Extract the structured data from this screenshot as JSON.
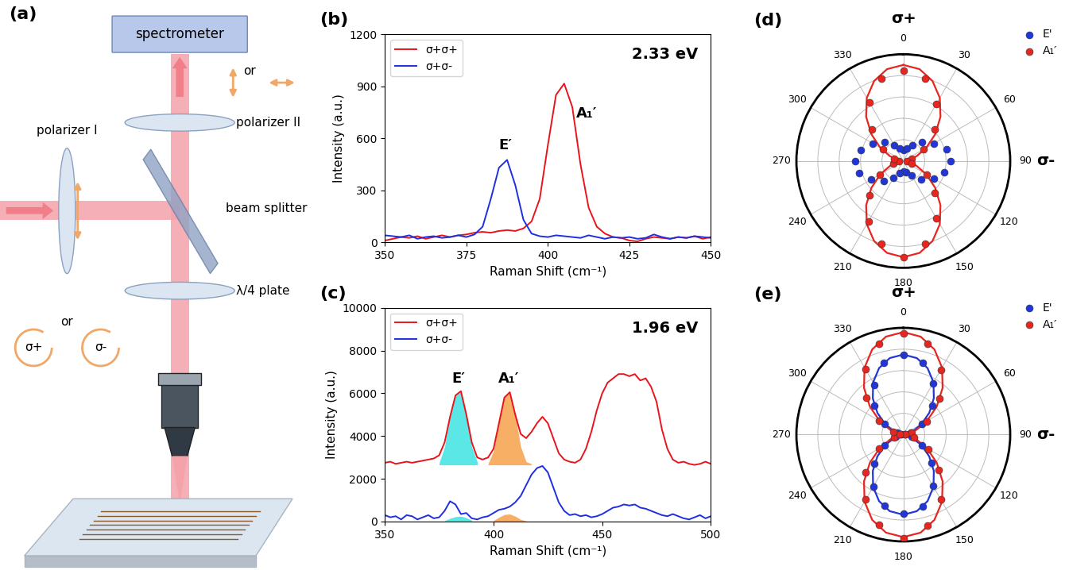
{
  "chart_data": [
    {
      "type": "line",
      "title": "(b)",
      "x_label": "Raman Shift (cm⁻¹)",
      "y_label": "Intensity (a.u.)",
      "x": [
        350,
        352.5,
        355,
        357.5,
        360,
        362.5,
        365,
        367.5,
        370,
        372.5,
        375,
        377.5,
        380,
        382.5,
        385,
        387.5,
        390,
        392.5,
        395,
        397.5,
        400,
        402.5,
        405,
        407.5,
        410,
        412.5,
        415,
        417.5,
        420,
        422.5,
        425,
        427.5,
        430,
        432.5,
        435,
        437.5,
        440,
        442.5,
        445,
        447.5,
        450
      ],
      "series": [
        {
          "name": "σ+σ+",
          "color": "#e8141c",
          "values": [
            10,
            20,
            30,
            25,
            35,
            20,
            30,
            40,
            30,
            40,
            45,
            55,
            60,
            55,
            65,
            70,
            65,
            80,
            120,
            250,
            560,
            850,
            915,
            780,
            450,
            200,
            90,
            50,
            30,
            25,
            10,
            5,
            20,
            30,
            25,
            20,
            30,
            25,
            35,
            20,
            30
          ]
        },
        {
          "name": "σ+σ-",
          "color": "#1f2fe0",
          "values": [
            40,
            35,
            30,
            40,
            20,
            30,
            35,
            25,
            30,
            40,
            30,
            45,
            90,
            250,
            430,
            475,
            330,
            130,
            50,
            35,
            30,
            40,
            35,
            30,
            25,
            40,
            30,
            20,
            30,
            25,
            30,
            20,
            25,
            45,
            30,
            20,
            30,
            25,
            35,
            30,
            25
          ]
        }
      ],
      "annotations": [
        {
          "text": "E′",
          "x": 387,
          "y": 520
        },
        {
          "text": "A₁′",
          "x": 412,
          "y": 700
        },
        {
          "text": "2.33 eV"
        }
      ],
      "xlim": [
        350,
        450
      ],
      "xticks": [
        350,
        375,
        400,
        425,
        450
      ],
      "ylim": [
        0,
        1200
      ],
      "yticks": [
        0,
        300,
        600,
        900,
        1200
      ],
      "legend": "upper left",
      "grid": false
    },
    {
      "type": "line",
      "title": "(c)",
      "x_label": "Raman Shift (cm⁻¹)",
      "y_label": "Intensity (a.u.)",
      "x": [
        350,
        352.5,
        355,
        357.5,
        360,
        362.5,
        365,
        367.5,
        370,
        372.5,
        375,
        377.5,
        380,
        382.5,
        385,
        387.5,
        390,
        392.5,
        395,
        397.5,
        400,
        402.5,
        405,
        407.5,
        410,
        412.5,
        415,
        417.5,
        420,
        422.5,
        425,
        427.5,
        430,
        432.5,
        435,
        437.5,
        440,
        442.5,
        445,
        447.5,
        450,
        452.5,
        455,
        457.5,
        460,
        462.5,
        465,
        467.5,
        470,
        472.5,
        475,
        477.5,
        480,
        482.5,
        485,
        487.5,
        490,
        492.5,
        495,
        497.5,
        500
      ],
      "series": [
        {
          "name": "σ+σ+",
          "color": "#e8141c",
          "values": [
            2750,
            2800,
            2700,
            2750,
            2800,
            2750,
            2800,
            2850,
            2900,
            2950,
            3100,
            3700,
            4900,
            5900,
            6100,
            5000,
            3700,
            3000,
            2900,
            3000,
            3400,
            4600,
            5800,
            6050,
            5000,
            4100,
            3900,
            4200,
            4600,
            4900,
            4600,
            3900,
            3200,
            2900,
            2800,
            2750,
            2900,
            3400,
            4200,
            5200,
            6000,
            6500,
            6700,
            6900,
            6900,
            6800,
            6900,
            6600,
            6700,
            6300,
            5600,
            4300,
            3400,
            2900,
            2750,
            2800,
            2700,
            2650,
            2700,
            2800,
            2700
          ]
        },
        {
          "name": "σ+σ-",
          "color": "#1f2fe0",
          "values": [
            300,
            200,
            250,
            100,
            300,
            250,
            100,
            200,
            300,
            150,
            200,
            500,
            950,
            800,
            350,
            400,
            150,
            100,
            200,
            250,
            400,
            550,
            600,
            700,
            900,
            1200,
            1700,
            2200,
            2500,
            2600,
            2300,
            1600,
            900,
            500,
            300,
            350,
            250,
            300,
            200,
            250,
            350,
            500,
            650,
            700,
            800,
            750,
            800,
            650,
            600,
            500,
            400,
            300,
            250,
            350,
            250,
            150,
            100,
            200,
            300,
            150,
            250
          ]
        },
        {
          "type": "area",
          "color": "#3fe3e3",
          "baseline": 2650,
          "x": [
            375,
            377.5,
            380,
            382.5,
            385,
            387.5,
            390,
            392.5
          ],
          "values": [
            2750,
            3500,
            5000,
            5950,
            6050,
            5000,
            3500,
            2800
          ]
        },
        {
          "type": "area",
          "color": "#f5a14a",
          "baseline": 2650,
          "x": [
            397.5,
            400,
            402.5,
            405,
            407.5,
            410,
            412.5,
            415,
            417.5
          ],
          "values": [
            2700,
            3300,
            4700,
            5900,
            6000,
            5000,
            3500,
            2800,
            2700
          ]
        },
        {
          "type": "area",
          "color": "#3fe3e3",
          "baseline": 0,
          "x": [
            377.5,
            380,
            382.5,
            385,
            387.5,
            390
          ],
          "values": [
            50,
            150,
            230,
            250,
            180,
            60
          ]
        },
        {
          "type": "area",
          "color": "#f5a14a",
          "baseline": 0,
          "x": [
            400,
            402.5,
            405,
            407.5,
            410,
            412.5,
            415
          ],
          "values": [
            50,
            200,
            330,
            350,
            250,
            100,
            30
          ]
        }
      ],
      "annotations": [
        {
          "text": "E′",
          "x": 384,
          "y": 6350
        },
        {
          "text": "A₁′",
          "x": 407,
          "y": 6350
        },
        {
          "text": "1.96 eV"
        }
      ],
      "xlim": [
        350,
        500
      ],
      "xticks": [
        350,
        400,
        450,
        500
      ],
      "ylim": [
        0,
        10000
      ],
      "yticks": [
        0,
        2000,
        4000,
        6000,
        8000,
        10000
      ],
      "legend": "upper left",
      "grid": false
    },
    {
      "type": "polar",
      "title": "(d)",
      "series": [
        {
          "name": "E'",
          "type": "scatter",
          "marker": "circle",
          "color": "#2236d8",
          "x": [
            0,
            15,
            30,
            45,
            60,
            75,
            90,
            105,
            120,
            135,
            150,
            165,
            180,
            195,
            210,
            225,
            240,
            255,
            270,
            285,
            300,
            315,
            330,
            345
          ],
          "values": [
            0.1,
            0.12,
            0.17,
            0.25,
            0.33,
            0.42,
            0.44,
            0.4,
            0.33,
            0.24,
            0.16,
            0.11,
            0.1,
            0.12,
            0.18,
            0.26,
            0.35,
            0.43,
            0.45,
            0.41,
            0.33,
            0.25,
            0.17,
            0.12
          ]
        },
        {
          "name": "A₁′",
          "type": "scatter",
          "marker": "circle",
          "color": "#e8251f",
          "x": [
            0,
            15,
            30,
            45,
            60,
            75,
            90,
            105,
            120,
            135,
            150,
            165,
            180,
            195,
            210,
            225,
            240,
            255,
            270,
            285,
            300,
            315,
            330,
            345
          ],
          "values": [
            0.85,
            0.8,
            0.62,
            0.42,
            0.22,
            0.08,
            0.03,
            0.08,
            0.25,
            0.42,
            0.62,
            0.8,
            0.9,
            0.8,
            0.65,
            0.45,
            0.25,
            0.1,
            0.04,
            0.09,
            0.22,
            0.42,
            0.63,
            0.8
          ]
        },
        {
          "type": "line",
          "color": "#e8251f",
          "x": [
            0,
            10,
            20,
            30,
            40,
            50,
            60,
            70,
            80,
            90,
            100,
            110,
            120,
            130,
            140,
            150,
            160,
            170,
            180,
            190,
            200,
            210,
            220,
            230,
            240,
            250,
            260,
            270,
            280,
            290,
            300,
            310,
            320,
            330,
            340,
            350,
            360
          ],
          "values": [
            0.9,
            0.874,
            0.798,
            0.683,
            0.541,
            0.389,
            0.248,
            0.132,
            0.056,
            0.03,
            0.056,
            0.132,
            0.248,
            0.389,
            0.541,
            0.683,
            0.798,
            0.874,
            0.9,
            0.874,
            0.798,
            0.683,
            0.541,
            0.389,
            0.248,
            0.132,
            0.056,
            0.03,
            0.056,
            0.132,
            0.248,
            0.389,
            0.541,
            0.683,
            0.798,
            0.874,
            0.9
          ]
        }
      ],
      "annotations": [
        {
          "text": "σ+",
          "x": 0
        },
        {
          "text": "σ-",
          "x": 90
        }
      ],
      "xticks": [
        0,
        30,
        60,
        90,
        120,
        150,
        180,
        210,
        240,
        270,
        300,
        330
      ],
      "ylim": [
        0,
        1
      ],
      "yticks": [
        0.2,
        0.4,
        0.6,
        0.8,
        1
      ],
      "tick_labels": "x",
      "legend": "upper right",
      "grid": true
    },
    {
      "type": "polar",
      "title": "(e)",
      "series": [
        {
          "name": "E'",
          "type": "scatter",
          "marker": "circle",
          "color": "#2236d8",
          "x": [
            0,
            15,
            30,
            45,
            60,
            75,
            90,
            105,
            120,
            135,
            150,
            165,
            180,
            195,
            210,
            225,
            240,
            255,
            270,
            285,
            300,
            315,
            330,
            345
          ],
          "values": [
            0.75,
            0.7,
            0.55,
            0.38,
            0.2,
            0.07,
            0.02,
            0.08,
            0.2,
            0.37,
            0.55,
            0.7,
            0.74,
            0.69,
            0.56,
            0.38,
            0.2,
            0.07,
            0.02,
            0.06,
            0.2,
            0.38,
            0.54,
            0.7
          ]
        },
        {
          "name": "A₁′",
          "type": "scatter",
          "marker": "circle",
          "color": "#e8251f",
          "x": [
            0,
            15,
            30,
            45,
            60,
            75,
            90,
            105,
            120,
            135,
            150,
            165,
            180,
            195,
            210,
            225,
            240,
            255,
            270,
            285,
            300,
            315,
            330,
            345
          ],
          "values": [
            0.95,
            0.88,
            0.7,
            0.48,
            0.25,
            0.08,
            0.02,
            0.1,
            0.27,
            0.47,
            0.7,
            0.88,
            0.97,
            0.87,
            0.7,
            0.5,
            0.26,
            0.09,
            0.03,
            0.1,
            0.26,
            0.49,
            0.71,
            0.88
          ]
        },
        {
          "type": "line",
          "color": "#2236d8",
          "x": [
            0,
            10,
            20,
            30,
            40,
            50,
            60,
            70,
            80,
            90,
            100,
            110,
            120,
            130,
            140,
            150,
            160,
            170,
            180,
            190,
            200,
            210,
            220,
            230,
            240,
            250,
            260,
            270,
            280,
            290,
            300,
            310,
            320,
            330,
            340,
            350,
            360
          ],
          "values": [
            0.75,
            0.728,
            0.663,
            0.565,
            0.444,
            0.316,
            0.195,
            0.097,
            0.032,
            0.01,
            0.032,
            0.097,
            0.195,
            0.316,
            0.444,
            0.565,
            0.663,
            0.728,
            0.75,
            0.728,
            0.663,
            0.565,
            0.444,
            0.316,
            0.195,
            0.097,
            0.032,
            0.01,
            0.032,
            0.097,
            0.195,
            0.316,
            0.444,
            0.565,
            0.663,
            0.728,
            0.75
          ]
        },
        {
          "type": "line",
          "color": "#e8251f",
          "x": [
            0,
            10,
            20,
            30,
            40,
            50,
            60,
            70,
            80,
            90,
            100,
            110,
            120,
            130,
            140,
            150,
            160,
            170,
            180,
            190,
            200,
            210,
            220,
            230,
            240,
            250,
            260,
            270,
            280,
            290,
            300,
            310,
            320,
            330,
            340,
            350,
            360
          ],
          "values": [
            0.96,
            0.932,
            0.85,
            0.725,
            0.572,
            0.408,
            0.255,
            0.13,
            0.048,
            0.02,
            0.048,
            0.13,
            0.255,
            0.408,
            0.572,
            0.725,
            0.85,
            0.932,
            0.96,
            0.932,
            0.85,
            0.725,
            0.572,
            0.408,
            0.255,
            0.13,
            0.048,
            0.02,
            0.048,
            0.13,
            0.255,
            0.408,
            0.572,
            0.725,
            0.85,
            0.932,
            0.96
          ]
        }
      ],
      "annotations": [
        {
          "text": "σ+",
          "x": 0
        },
        {
          "text": "σ-",
          "x": 90
        }
      ],
      "xticks": [
        0,
        30,
        60,
        90,
        120,
        150,
        180,
        210,
        240,
        270,
        300,
        330
      ],
      "ylim": [
        0,
        1
      ],
      "yticks": [
        0.2,
        0.4,
        0.6,
        0.8,
        1
      ],
      "tick_labels": "x",
      "legend": "upper right",
      "grid": true
    }
  ],
  "diagram": {
    "title": "(a)",
    "spectrometer": "spectrometer",
    "polarizer_2": "polarizer II",
    "polarizer_1": "polarizer I",
    "beam_splitter": "beam splitter",
    "quarter_wave_plate": "λ/4 plate",
    "or_linear": "or",
    "or_circular": "or",
    "sigma_plus": "σ+",
    "sigma_minus": "σ-"
  }
}
